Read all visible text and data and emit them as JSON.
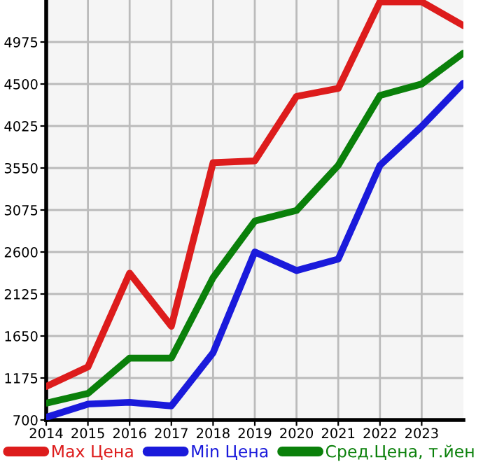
{
  "chart_data": {
    "type": "line",
    "x": [
      2014,
      2015,
      2016,
      2017,
      2018,
      2019,
      2020,
      2021,
      2022,
      2023,
      2024
    ],
    "series": [
      {
        "name": "Max Цена",
        "color": "#dd1c1c",
        "values": [
          1080,
          1300,
          2360,
          1760,
          3610,
          3630,
          4360,
          4450,
          5430,
          5430,
          5160
        ]
      },
      {
        "name": "Min Цена",
        "color": "#1a1adb",
        "values": [
          730,
          880,
          900,
          860,
          1460,
          2600,
          2390,
          2520,
          3580,
          4020,
          4510
        ]
      },
      {
        "name": "Сред.Цена, т.йен",
        "color": "#0a800a",
        "values": [
          890,
          1000,
          1400,
          1400,
          2310,
          2950,
          3070,
          3580,
          4370,
          4500,
          4850
        ]
      }
    ],
    "xlim": [
      2014,
      2024
    ],
    "xticks": [
      2014,
      2015,
      2016,
      2017,
      2018,
      2019,
      2020,
      2021,
      2022,
      2023
    ],
    "ylim": [
      700,
      5450
    ],
    "yticks": [
      700,
      1175,
      1650,
      2125,
      2600,
      3075,
      3550,
      4025,
      4500,
      4975
    ],
    "grid": true,
    "legend": "bottom",
    "marker": "none",
    "line_style": "solid"
  }
}
